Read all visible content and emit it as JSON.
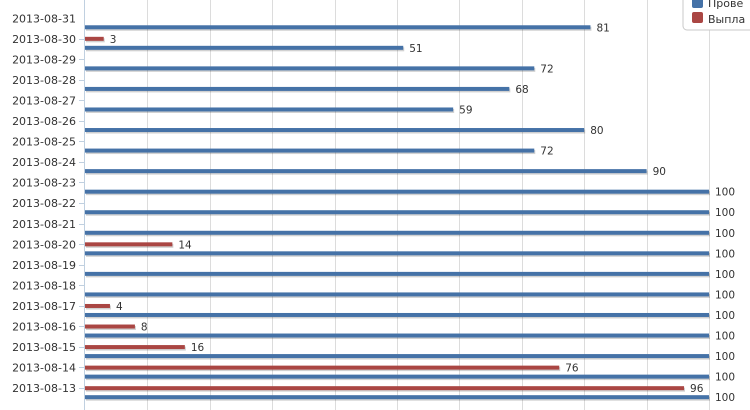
{
  "chart_data": {
    "type": "bar",
    "orientation": "horizontal",
    "categories": [
      "2013-08-31",
      "2013-08-30",
      "2013-08-29",
      "2013-08-28",
      "2013-08-27",
      "2013-08-26",
      "2013-08-25",
      "2013-08-24",
      "2013-08-23",
      "2013-08-22",
      "2013-08-21",
      "2013-08-20",
      "2013-08-19",
      "2013-08-18",
      "2013-08-17",
      "2013-08-16",
      "2013-08-15",
      "2013-08-14",
      "2013-08-13"
    ],
    "series": [
      {
        "name": "Прове",
        "color": "#4572a7",
        "values": [
          81,
          51,
          72,
          68,
          59,
          80,
          72,
          90,
          100,
          100,
          100,
          100,
          100,
          100,
          100,
          100,
          100,
          100,
          100
        ]
      },
      {
        "name": "Выпла",
        "color": "#aa4643",
        "values": [
          null,
          3,
          null,
          null,
          null,
          null,
          null,
          null,
          null,
          null,
          null,
          14,
          null,
          null,
          4,
          8,
          16,
          76,
          96
        ]
      }
    ],
    "xlim": [
      0,
      100
    ],
    "grid": true,
    "legend_position": "top-right"
  }
}
